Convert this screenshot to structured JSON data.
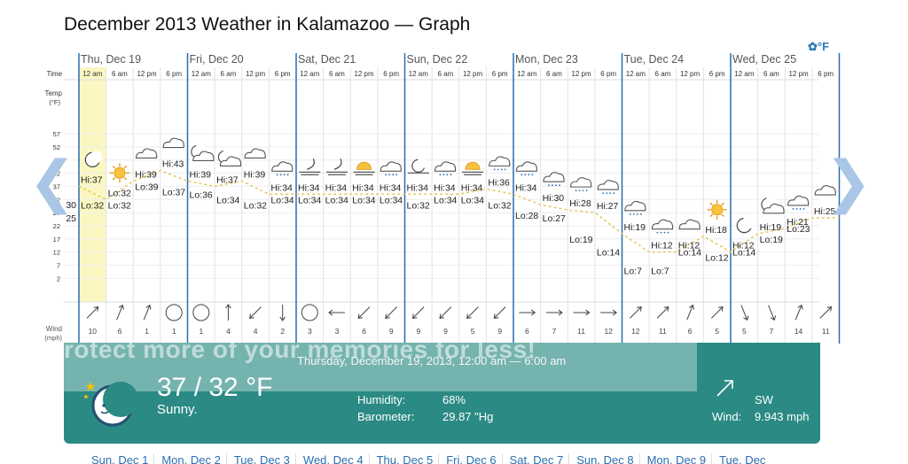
{
  "page_title": "December 2013 Weather in Kalamazoo — Graph",
  "units_toggle": "°F",
  "graph": {
    "day_headers": [
      "Thu, Dec 19",
      "Fri, Dec 20",
      "Sat, Dec 21",
      "Sun, Dec 22",
      "Mon, Dec 23",
      "Tue, Dec 24",
      "Wed, Dec 25"
    ],
    "time_slot_labels": [
      "12 am",
      "6 am",
      "12 pm",
      "6 pm"
    ],
    "row_label_time": "Time",
    "row_label_temp": "Temp",
    "row_label_temp_unit": "(°F)",
    "row_label_wind": "Wind",
    "row_label_wind_unit": "(mph)",
    "temp_ticks": [
      57,
      52,
      47,
      42,
      37,
      32,
      27,
      22,
      17,
      12,
      7,
      2
    ],
    "temp_axis_range": [
      2,
      57
    ],
    "highlighted_slot": 0,
    "accent_color": "#2a6db0",
    "highlight_color": "#fbf7c2",
    "slots": [
      {
        "icon": "moon-icon",
        "label": "Hi:37",
        "temp": 37,
        "kind": "hi",
        "wind": "10",
        "wind_dir": "sw"
      },
      {
        "icon": "sun-icon",
        "label": "Lo:32",
        "temp": 32,
        "kind": "lo",
        "wind": "6",
        "wind_dir": "ssw"
      },
      {
        "icon": "cloud-icon",
        "label": "Hi:39",
        "temp": 39,
        "kind": "hi",
        "wind": "1",
        "wind_dir": "ssw"
      },
      {
        "icon": "cloud-icon",
        "label": "Hi:43",
        "temp": 43,
        "kind": "hi",
        "wind": "1",
        "wind_dir": "calm"
      },
      {
        "icon": "moon-cloud-icon",
        "label": "Hi:39",
        "temp": 39,
        "kind": "hi",
        "wind": "1",
        "wind_dir": "calm"
      },
      {
        "icon": "moon-cloud-icon",
        "label": "Hi:37",
        "temp": 37,
        "kind": "hi",
        "wind": "4",
        "wind_dir": "s"
      },
      {
        "icon": "cloud-icon",
        "label": "Hi:39",
        "temp": 39,
        "kind": "hi",
        "wind": "4",
        "wind_dir": "ne"
      },
      {
        "icon": "snow-cloud-icon",
        "label": "Hi:34",
        "temp": 34,
        "kind": "hi",
        "wind": "2",
        "wind_dir": "n"
      },
      {
        "icon": "windy-moon-icon",
        "label": "Hi:34",
        "temp": 34,
        "kind": "hi",
        "wind": "3",
        "wind_dir": "calm"
      },
      {
        "icon": "windy-moon-icon",
        "label": "Hi:34",
        "temp": 34,
        "kind": "hi",
        "wind": "3",
        "wind_dir": "e"
      },
      {
        "icon": "windy-sun-icon",
        "label": "Hi:34",
        "temp": 34,
        "kind": "hi",
        "wind": "6",
        "wind_dir": "ne"
      },
      {
        "icon": "snow-cloud-icon",
        "label": "Hi:34",
        "temp": 34,
        "kind": "hi",
        "wind": "9",
        "wind_dir": "ne"
      },
      {
        "icon": "snow-moon-icon",
        "label": "Hi:34",
        "temp": 34,
        "kind": "hi",
        "wind": "9",
        "wind_dir": "ne"
      },
      {
        "icon": "snow-cloud-icon",
        "label": "Hi:34",
        "temp": 34,
        "kind": "hi",
        "wind": "9",
        "wind_dir": "ne"
      },
      {
        "icon": "windy-sun-icon",
        "label": "Hi:34",
        "temp": 34,
        "kind": "hi",
        "wind": "5",
        "wind_dir": "ne"
      },
      {
        "icon": "snow-cloud-icon",
        "label": "Hi:36",
        "temp": 36,
        "kind": "hi",
        "wind": "9",
        "wind_dir": "ne"
      },
      {
        "icon": "snow-cloud-icon",
        "label": "Hi:34",
        "temp": 34,
        "kind": "hi",
        "wind": "6",
        "wind_dir": "w"
      },
      {
        "icon": "snow-cloud-icon",
        "label": "Hi:30",
        "temp": 30,
        "kind": "hi",
        "wind": "7",
        "wind_dir": "w"
      },
      {
        "icon": "snow-cloud-icon",
        "label": "Hi:28",
        "temp": 28,
        "kind": "hi",
        "wind": "11",
        "wind_dir": "w"
      },
      {
        "icon": "snow-cloud-icon",
        "label": "Hi:27",
        "temp": 27,
        "kind": "hi",
        "wind": "12",
        "wind_dir": "w"
      },
      {
        "icon": "snow-cloud-icon",
        "label": "Hi:19",
        "temp": 19,
        "kind": "hi",
        "wind": "12",
        "wind_dir": "sw"
      },
      {
        "icon": "snow-cloud-icon",
        "label": "Hi:12",
        "temp": 12,
        "kind": "hi",
        "wind": "11",
        "wind_dir": "sw"
      },
      {
        "icon": "cloud-icon",
        "label": "Hi:12",
        "temp": 12,
        "kind": "hi",
        "wind": "6",
        "wind_dir": "ssw"
      },
      {
        "icon": "sun-icon",
        "label": "Hi:18",
        "temp": 18,
        "kind": "hi",
        "wind": "5",
        "wind_dir": "sw"
      },
      {
        "icon": "moon-icon",
        "label": "Hi:12",
        "temp": 12,
        "kind": "hi",
        "wind": "5",
        "wind_dir": "nnw"
      },
      {
        "icon": "moon-cloud-icon",
        "label": "Hi:19",
        "temp": 19,
        "kind": "hi",
        "wind": "7",
        "wind_dir": "nnw"
      },
      {
        "icon": "snow-cloud-icon",
        "label": "Hi:21",
        "temp": 21,
        "kind": "hi",
        "wind": "14",
        "wind_dir": "ssw"
      },
      {
        "icon": "cloud-icon",
        "label": "Hi:25",
        "temp": 25,
        "kind": "hi",
        "wind": "11",
        "wind_dir": "sw"
      },
      {
        "icon": "cloud-icon",
        "label": "Hi",
        "temp": 25,
        "kind": "hi",
        "wind": "",
        "wind_dir": "sw"
      }
    ],
    "lo_labels": [
      "Lo:32",
      "Lo:32",
      "Lo:39",
      "Lo:37",
      "Lo:36",
      "Lo:34",
      "Lo:32",
      "Lo:34",
      "Lo:34",
      "Lo:34",
      "Lo:34",
      "Lo:34",
      "Lo:32",
      "Lo:34",
      "Lo:34",
      "Lo:32",
      "Lo:28",
      "Lo:27",
      "Lo:19",
      "Lo:14",
      "Lo:7",
      "Lo:7",
      "Lo:14",
      "Lo:12",
      "Lo:14",
      "Lo:19",
      "Lo:23"
    ],
    "edge_values": [
      "30",
      "25"
    ]
  },
  "panel": {
    "overlay_text": "rotect more of your memories for less!",
    "period": "Thursday, December 19, 2013, 12:00 am — 6:00 am",
    "temperature": "37 / 32 °F",
    "condition": "Sunny.",
    "humidity_label": "Humidity:",
    "humidity_value": "68%",
    "barometer_label": "Barometer:",
    "barometer_value": "29.87 \"Hg",
    "wind_dir": "SW",
    "wind_label": "Wind:",
    "wind_value": "9.943 mph"
  },
  "month_days": [
    "Sun, Dec 1",
    "Mon, Dec 2",
    "Tue, Dec 3",
    "Wed, Dec 4",
    "Thu, Dec 5",
    "Fri, Dec 6",
    "Sat, Dec 7",
    "Sun, Dec 8",
    "Mon, Dec 9",
    "Tue, Dec"
  ]
}
